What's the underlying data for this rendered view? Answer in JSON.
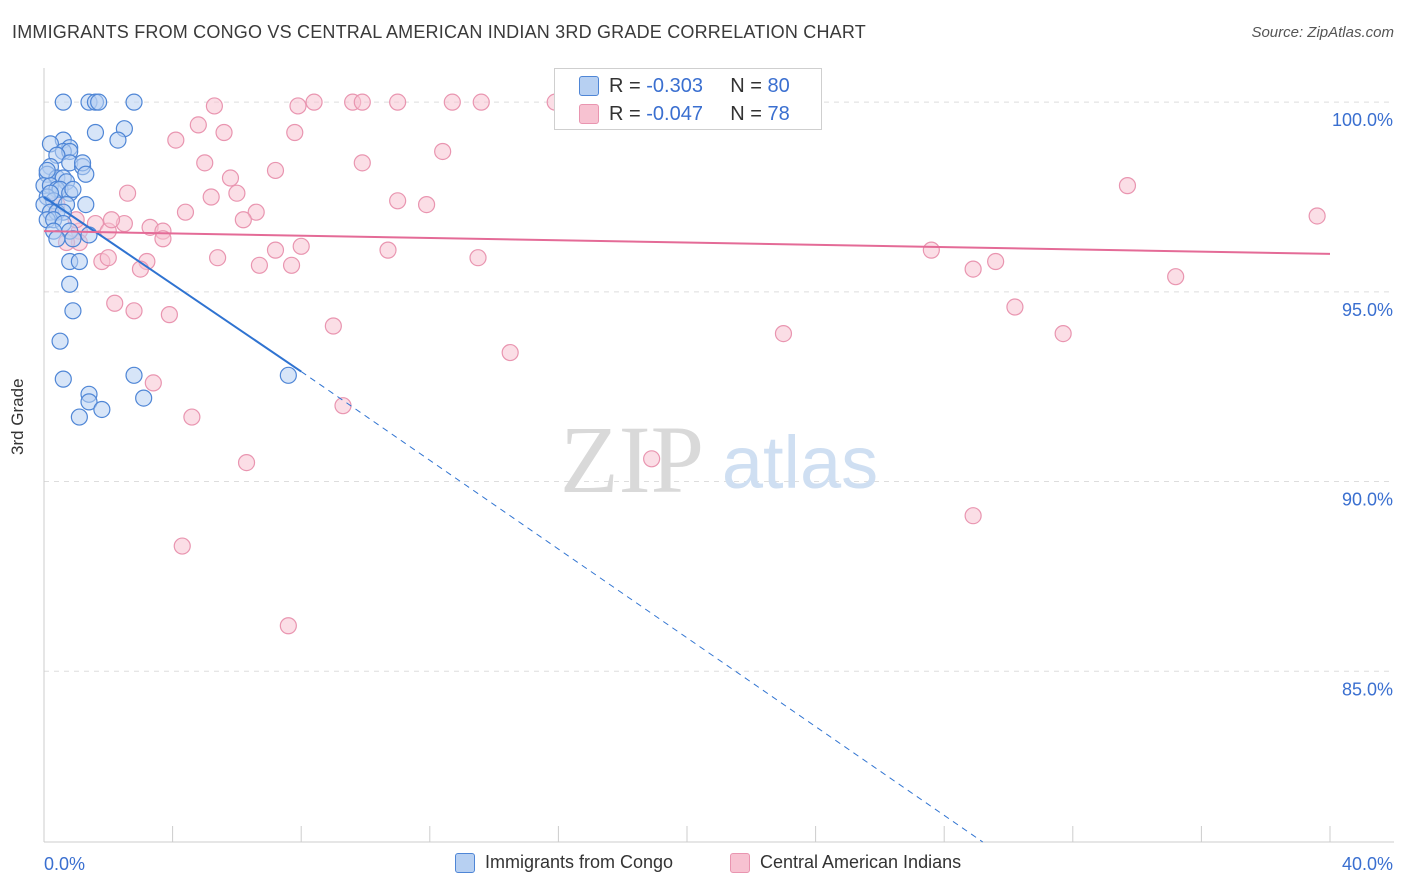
{
  "title": "IMMIGRANTS FROM CONGO VS CENTRAL AMERICAN INDIAN 3RD GRADE CORRELATION CHART",
  "source": "Source: ZipAtlas.com",
  "watermark": {
    "zip": "ZIP",
    "atlas": "atlas"
  },
  "legend_top": {
    "rows": [
      {
        "r_label": "R =",
        "r_value": "-0.303",
        "n_label": "N =",
        "n_value": "80"
      },
      {
        "r_label": "R =",
        "r_value": "-0.047",
        "n_label": "N =",
        "n_value": "78"
      }
    ]
  },
  "legend_bottom": {
    "series1": "Immigrants from Congo",
    "series2": "Central American Indians"
  },
  "colors": {
    "blue_fill": "#b7d0f2",
    "blue_stroke": "#4f86d6",
    "blue_line": "#2f73d1",
    "pink_fill": "#f7c2d1",
    "pink_stroke": "#e995b0",
    "pink_line": "#e46b97",
    "axis_text": "#3a6fd0",
    "grid": "#dddddd"
  },
  "chart_data": {
    "type": "scatter",
    "title": "IMMIGRANTS FROM CONGO VS CENTRAL AMERICAN INDIAN 3RD GRADE CORRELATION CHART",
    "xlabel": "",
    "ylabel": "3rd Grade",
    "xlim": [
      0,
      40
    ],
    "ylim": [
      80.5,
      100.9
    ],
    "x_tick_labels": {
      "left": "0.0%",
      "right": "40.0%"
    },
    "y_ticks": [
      100,
      95,
      90,
      85
    ],
    "y_tick_labels": [
      "100.0%",
      "95.0%",
      "90.0%",
      "85.0%"
    ],
    "grid": true,
    "series": [
      {
        "name": "Immigrants from Congo",
        "color": "blue",
        "r": -0.303,
        "n": 80,
        "trend": {
          "x0": 0.0,
          "y0": 97.5,
          "x1": 8.0,
          "y1": 92.9,
          "dash_to_x": 29.2,
          "dash_to_y": 80.5
        },
        "points": [
          [
            0.6,
            100.0
          ],
          [
            1.4,
            100.0
          ],
          [
            1.6,
            100.0
          ],
          [
            1.7,
            100.0
          ],
          [
            2.8,
            100.0
          ],
          [
            2.5,
            99.3
          ],
          [
            1.6,
            99.2
          ],
          [
            2.3,
            99.0
          ],
          [
            0.6,
            99.0
          ],
          [
            0.8,
            98.8
          ],
          [
            0.2,
            98.9
          ],
          [
            0.6,
            98.7
          ],
          [
            0.8,
            98.7
          ],
          [
            0.4,
            98.6
          ],
          [
            0.2,
            98.3
          ],
          [
            0.8,
            98.4
          ],
          [
            1.2,
            98.3
          ],
          [
            1.2,
            98.4
          ],
          [
            1.3,
            98.1
          ],
          [
            0.1,
            98.1
          ],
          [
            0.4,
            98.0
          ],
          [
            0.6,
            98.0
          ],
          [
            0.7,
            97.9
          ],
          [
            0.0,
            97.8
          ],
          [
            0.2,
            97.8
          ],
          [
            0.4,
            97.7
          ],
          [
            0.5,
            97.7
          ],
          [
            0.8,
            97.6
          ],
          [
            0.9,
            97.7
          ],
          [
            0.1,
            97.5
          ],
          [
            0.3,
            97.4
          ],
          [
            0.7,
            97.3
          ],
          [
            0.0,
            97.3
          ],
          [
            1.3,
            97.3
          ],
          [
            0.2,
            97.1
          ],
          [
            0.4,
            97.1
          ],
          [
            0.6,
            97.1
          ],
          [
            0.1,
            96.9
          ],
          [
            0.3,
            96.9
          ],
          [
            0.6,
            96.8
          ],
          [
            0.3,
            96.6
          ],
          [
            0.8,
            96.6
          ],
          [
            0.4,
            96.4
          ],
          [
            1.4,
            96.5
          ],
          [
            0.9,
            96.4
          ],
          [
            0.8,
            95.8
          ],
          [
            1.1,
            95.8
          ],
          [
            0.8,
            95.2
          ],
          [
            0.9,
            94.5
          ],
          [
            0.5,
            93.7
          ],
          [
            0.6,
            92.7
          ],
          [
            2.8,
            92.8
          ],
          [
            1.4,
            92.3
          ],
          [
            3.1,
            92.2
          ],
          [
            1.4,
            92.1
          ],
          [
            1.8,
            91.9
          ],
          [
            1.1,
            91.7
          ],
          [
            7.6,
            92.8
          ],
          [
            0.1,
            98.2
          ],
          [
            0.2,
            97.6
          ]
        ]
      },
      {
        "name": "Central American Indians",
        "color": "pink",
        "r": -0.047,
        "n": 78,
        "trend": {
          "x0": 0.0,
          "y0": 96.6,
          "x1": 40.0,
          "y1": 96.0
        },
        "points": [
          [
            5.3,
            99.9
          ],
          [
            7.9,
            99.9
          ],
          [
            8.4,
            100.0
          ],
          [
            9.6,
            100.0
          ],
          [
            9.9,
            100.0
          ],
          [
            11.0,
            100.0
          ],
          [
            12.7,
            100.0
          ],
          [
            13.6,
            100.0
          ],
          [
            15.9,
            100.0
          ],
          [
            22.4,
            100.0
          ],
          [
            4.8,
            99.4
          ],
          [
            5.6,
            99.2
          ],
          [
            7.8,
            99.2
          ],
          [
            4.1,
            99.0
          ],
          [
            12.4,
            98.7
          ],
          [
            5.0,
            98.4
          ],
          [
            7.2,
            98.2
          ],
          [
            9.9,
            98.4
          ],
          [
            5.8,
            98.0
          ],
          [
            2.6,
            97.6
          ],
          [
            5.2,
            97.5
          ],
          [
            6.0,
            97.6
          ],
          [
            11.0,
            97.4
          ],
          [
            11.9,
            97.3
          ],
          [
            4.4,
            97.1
          ],
          [
            6.6,
            97.1
          ],
          [
            33.7,
            97.8
          ],
          [
            39.6,
            97.0
          ],
          [
            6.2,
            96.9
          ],
          [
            2.5,
            96.8
          ],
          [
            3.3,
            96.7
          ],
          [
            1.6,
            96.8
          ],
          [
            1.1,
            96.6
          ],
          [
            3.7,
            96.6
          ],
          [
            3.7,
            96.4
          ],
          [
            1.1,
            96.3
          ],
          [
            0.7,
            96.3
          ],
          [
            7.2,
            96.1
          ],
          [
            8.0,
            96.2
          ],
          [
            10.7,
            96.1
          ],
          [
            13.5,
            95.9
          ],
          [
            27.6,
            96.1
          ],
          [
            28.9,
            95.6
          ],
          [
            29.6,
            95.8
          ],
          [
            35.2,
            95.4
          ],
          [
            5.4,
            95.9
          ],
          [
            6.7,
            95.7
          ],
          [
            7.7,
            95.7
          ],
          [
            1.8,
            95.8
          ],
          [
            2.0,
            95.9
          ],
          [
            3.2,
            95.8
          ],
          [
            3.0,
            95.6
          ],
          [
            2.2,
            94.7
          ],
          [
            2.8,
            94.5
          ],
          [
            3.9,
            94.4
          ],
          [
            9.0,
            94.1
          ],
          [
            30.2,
            94.6
          ],
          [
            31.7,
            93.9
          ],
          [
            23.0,
            93.9
          ],
          [
            14.5,
            93.4
          ],
          [
            3.4,
            92.6
          ],
          [
            9.3,
            92.0
          ],
          [
            4.6,
            91.7
          ],
          [
            18.9,
            90.6
          ],
          [
            6.3,
            90.5
          ],
          [
            28.9,
            89.1
          ],
          [
            4.3,
            88.3
          ],
          [
            7.6,
            86.2
          ],
          [
            2.0,
            96.6
          ],
          [
            0.4,
            97.3
          ],
          [
            1.0,
            96.9
          ],
          [
            2.1,
            96.9
          ]
        ]
      }
    ]
  }
}
